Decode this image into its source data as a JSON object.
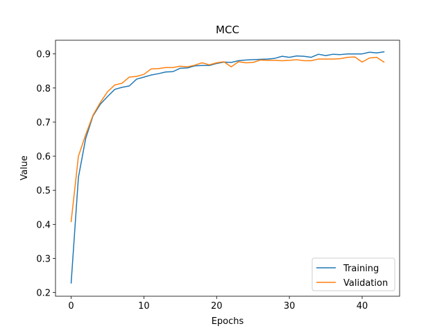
{
  "chart_data": {
    "type": "line",
    "title": "MCC",
    "xlabel": "Epochs",
    "ylabel": "Value",
    "xlim": [
      -2.15,
      45.15
    ],
    "ylim": [
      0.1891,
      0.9401
    ],
    "xticks": [
      0,
      10,
      20,
      30,
      40
    ],
    "yticks": [
      0.2,
      0.3,
      0.4,
      0.5,
      0.6,
      0.7,
      0.8,
      0.9
    ],
    "ytick_labels": [
      "0.2",
      "0.3",
      "0.4",
      "0.5",
      "0.6",
      "0.7",
      "0.8",
      "0.9"
    ],
    "grid": false,
    "legend_position": "lower-right",
    "x": [
      0,
      1,
      2,
      3,
      4,
      5,
      6,
      7,
      8,
      9,
      10,
      11,
      12,
      13,
      14,
      15,
      16,
      17,
      18,
      19,
      20,
      21,
      22,
      23,
      24,
      25,
      26,
      27,
      28,
      29,
      30,
      31,
      32,
      33,
      34,
      35,
      36,
      37,
      38,
      39,
      40,
      41,
      42,
      43
    ],
    "series": [
      {
        "name": "Training",
        "color": "#1f77b4",
        "values": [
          0.228,
          0.538,
          0.652,
          0.718,
          0.752,
          0.775,
          0.796,
          0.802,
          0.806,
          0.826,
          0.832,
          0.838,
          0.842,
          0.847,
          0.848,
          0.858,
          0.859,
          0.865,
          0.866,
          0.866,
          0.872,
          0.876,
          0.875,
          0.88,
          0.882,
          0.883,
          0.884,
          0.885,
          0.887,
          0.893,
          0.89,
          0.894,
          0.893,
          0.89,
          0.899,
          0.895,
          0.899,
          0.898,
          0.9,
          0.9,
          0.9,
          0.905,
          0.903,
          0.906
        ]
      },
      {
        "name": "Validation",
        "color": "#ff7f0e",
        "values": [
          0.408,
          0.6,
          0.663,
          0.72,
          0.757,
          0.789,
          0.809,
          0.814,
          0.832,
          0.834,
          0.84,
          0.856,
          0.857,
          0.86,
          0.86,
          0.864,
          0.862,
          0.867,
          0.874,
          0.868,
          0.874,
          0.877,
          0.862,
          0.877,
          0.874,
          0.875,
          0.882,
          0.881,
          0.881,
          0.88,
          0.881,
          0.883,
          0.88,
          0.88,
          0.885,
          0.885,
          0.885,
          0.886,
          0.89,
          0.891,
          0.876,
          0.888,
          0.89,
          0.876
        ]
      }
    ]
  }
}
